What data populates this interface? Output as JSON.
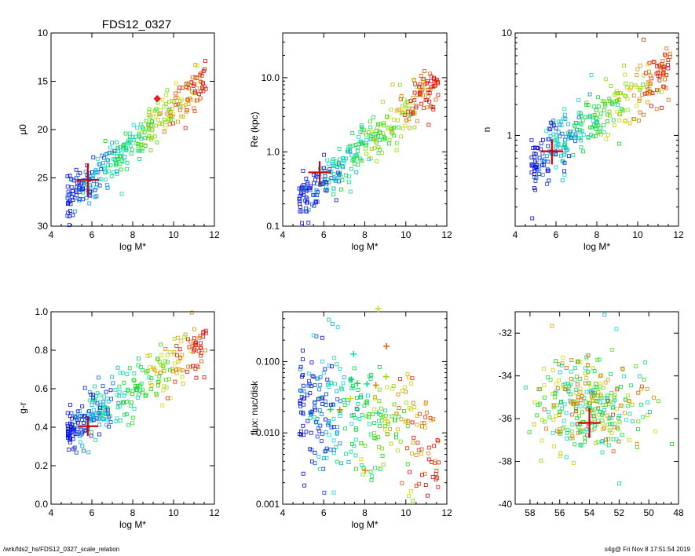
{
  "page_title": "FDS12_0327",
  "footer": {
    "path": "/wrk/fds2_hs/FDS12_0327_scale_relation",
    "stamp": "s4g@  Fri Nov  8 17:51:54 2019"
  },
  "chart_data": [
    {
      "id": "mu0",
      "type": "scatter",
      "title": "FDS12_0327",
      "xlabel": "log M*",
      "ylabel": "μ0",
      "xlim": [
        4,
        12
      ],
      "ylim": [
        30,
        10
      ],
      "y_reversed": true,
      "xticks": [
        4,
        6,
        8,
        10,
        12
      ],
      "yticks": [
        10,
        15,
        20,
        25,
        30
      ],
      "ytick_labels": [
        "10",
        "15",
        "20",
        "25",
        "30"
      ],
      "marker": {
        "x": 5.8,
        "y": 25.2,
        "xerr": 0.55,
        "yerr": 1.7
      },
      "special_points": [
        {
          "x": 9.2,
          "y": 16.8
        }
      ]
    },
    {
      "id": "re",
      "type": "scatter",
      "xlabel": "log M*",
      "ylabel": "Re (kpc)",
      "xlim": [
        4,
        12
      ],
      "ylim": [
        0.1,
        40
      ],
      "log_y": true,
      "xticks": [
        4,
        6,
        8,
        10,
        12
      ],
      "yticks": [
        0.1,
        1.0,
        10.0
      ],
      "ytick_labels": [
        "0.1",
        "1.0",
        "10.0"
      ],
      "marker": {
        "x": 5.8,
        "y": 0.53,
        "xerr": 0.55,
        "ylo": 0.36,
        "yhi": 0.75
      }
    },
    {
      "id": "n",
      "type": "scatter",
      "xlabel": "log M*",
      "ylabel": "n",
      "xlim": [
        4,
        12
      ],
      "ylim": [
        0.13,
        10
      ],
      "log_y": true,
      "xticks": [
        4,
        6,
        8,
        10,
        12
      ],
      "yticks": [
        1,
        10
      ],
      "ytick_labels": [
        "1",
        "10"
      ],
      "marker": {
        "x": 5.8,
        "y": 0.7,
        "xerr": 0.55,
        "ylo": 0.52,
        "yhi": 0.92
      }
    },
    {
      "id": "gr",
      "type": "scatter",
      "xlabel": "log M*",
      "ylabel": "g-r",
      "xlim": [
        4,
        12
      ],
      "ylim": [
        0.0,
        1.0
      ],
      "xticks": [
        4,
        6,
        8,
        10,
        12
      ],
      "yticks": [
        0.0,
        0.2,
        0.4,
        0.6,
        0.8,
        1.0
      ],
      "ytick_labels": [
        "0.0",
        "0.2",
        "0.4",
        "0.6",
        "0.8",
        "1.0"
      ],
      "marker": {
        "x": 5.8,
        "y": 0.405,
        "xerr": 0.5,
        "yerr": 0.05
      }
    },
    {
      "id": "flux",
      "type": "scatter",
      "xlabel": "log M*",
      "ylabel": "flux: nuc/disk",
      "xlim": [
        4,
        12
      ],
      "ylim": [
        0.001,
        0.5
      ],
      "log_y": true,
      "xticks": [
        4,
        6,
        8,
        10,
        12
      ],
      "yticks": [
        0.001,
        0.01,
        0.1
      ],
      "ytick_labels": [
        "0.001",
        "0.010",
        "0.100"
      ]
    },
    {
      "id": "radec",
      "type": "scatter",
      "xlabel": "",
      "ylabel": "",
      "xlim": [
        59,
        48
      ],
      "ylim": [
        -40,
        -31
      ],
      "x_reversed": true,
      "xticks": [
        58,
        56,
        54,
        52,
        50,
        48
      ],
      "yticks": [
        -40,
        -38,
        -36,
        -34,
        -32
      ],
      "ytick_labels": [
        "-40",
        "-38",
        "-36",
        "-34",
        "-32"
      ],
      "marker": {
        "x": 54.0,
        "y": -36.2,
        "xerr": 0.75,
        "yerr": 0.7
      }
    }
  ]
}
